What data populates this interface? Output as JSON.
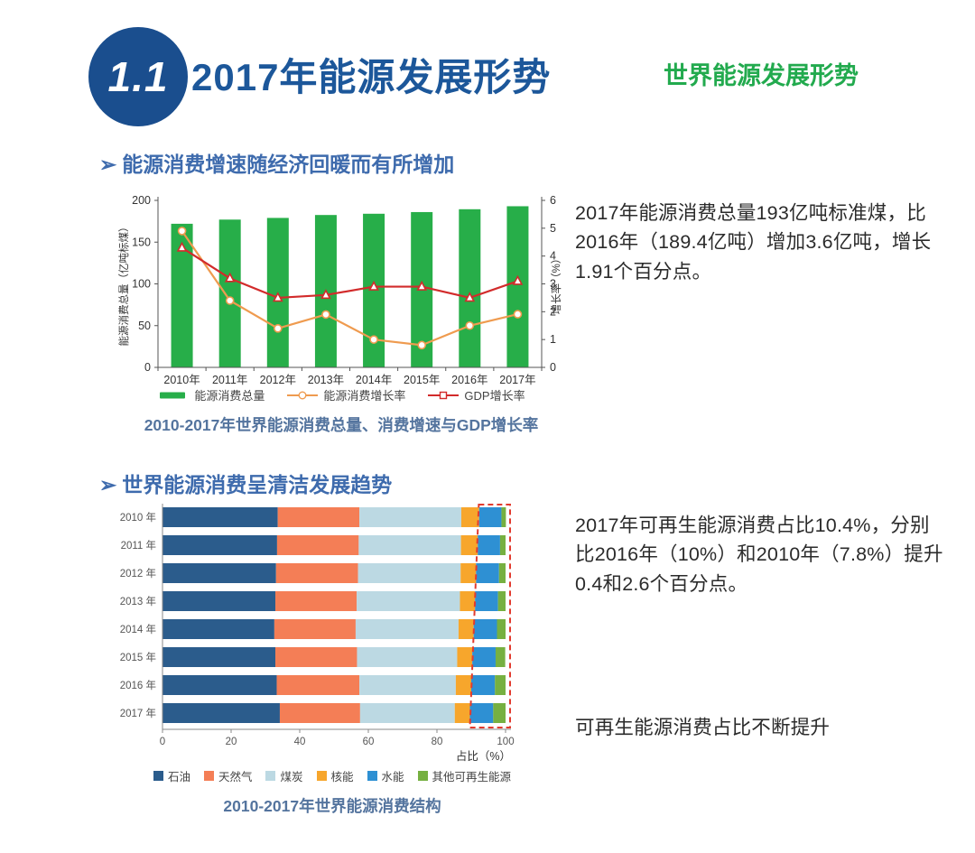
{
  "header": {
    "badge": "1.1",
    "title": "2017年能源发展形势",
    "subtitle": "世界能源发展形势"
  },
  "sections": [
    {
      "bullet": "➢",
      "heading": "能源消费增速随经济回暖而有所增加",
      "caption": "2010-2017年世界能源消费总量、消费增速与GDP增长率",
      "note": "2017年能源消费总量193亿吨标准煤，比2016年（189.4亿吨）增加3.6亿吨，增长1.91个百分点。"
    },
    {
      "bullet": "➢",
      "heading": "世界能源消费呈清洁发展趋势",
      "caption": "2010-2017年世界能源消费结构",
      "note": "2017年可再生能源消费占比10.4%，分别比2016年（10%）和2010年（7.8%）提升0.4和2.6个百分点。",
      "note2": "可再生能源消费占比不断提升"
    }
  ],
  "chart_data": [
    {
      "type": "bar",
      "subtype": "bar-line-combo",
      "title": "2010-2017年世界能源消费总量、消费增速与GDP增长率",
      "categories": [
        "2010年",
        "2011年",
        "2012年",
        "2013年",
        "2014年",
        "2015年",
        "2016年",
        "2017年"
      ],
      "series": [
        {
          "key": "total-consumption",
          "name": "能源消费总量",
          "type": "bar",
          "axis": "left",
          "color": "#27ae49",
          "values": [
            172,
            177,
            179,
            182.5,
            184,
            186,
            189.4,
            193
          ]
        },
        {
          "key": "consumption-growth",
          "name": "能源消费增长率",
          "type": "line",
          "axis": "right",
          "color": "#ef9b4f",
          "marker": "circle",
          "values": [
            4.9,
            2.4,
            1.4,
            1.9,
            1.0,
            0.8,
            1.5,
            1.91
          ]
        },
        {
          "key": "gdp-growth",
          "name": "GDP增长率",
          "type": "line",
          "axis": "right",
          "color": "#d22b2b",
          "marker": "triangle",
          "values": [
            4.3,
            3.2,
            2.5,
            2.6,
            2.9,
            2.9,
            2.5,
            3.1
          ]
        }
      ],
      "left_axis": {
        "label": "能源消费总量（亿吨标煤）",
        "min": 0,
        "max": 200,
        "step": 50
      },
      "right_axis": {
        "label": "增长率（%）",
        "min": 0,
        "max": 6,
        "step": 1
      },
      "grid": false,
      "legend_position": "bottom"
    },
    {
      "type": "bar",
      "subtype": "horizontal-stacked-percent",
      "title": "2010-2017年世界能源消费结构",
      "categories": [
        "2010 年",
        "2011 年",
        "2012 年",
        "2013 年",
        "2014 年",
        "2015 年",
        "2016 年",
        "2017 年"
      ],
      "series": [
        {
          "key": "oil",
          "name": "石油",
          "color": "#2b5c8c",
          "values": [
            33.6,
            33.4,
            33.1,
            32.9,
            32.6,
            32.9,
            33.3,
            34.2
          ]
        },
        {
          "key": "natural-gas",
          "name": "天然气",
          "color": "#f47e56",
          "values": [
            23.8,
            23.8,
            23.9,
            23.7,
            23.7,
            23.8,
            24.1,
            23.4
          ]
        },
        {
          "key": "coal",
          "name": "煤炭",
          "color": "#bcd9e3",
          "values": [
            29.7,
            29.8,
            29.9,
            30.1,
            30.0,
            29.2,
            28.1,
            27.6
          ]
        },
        {
          "key": "nuclear",
          "name": "核能",
          "color": "#f7a62c",
          "values": [
            5.2,
            4.9,
            4.5,
            4.4,
            4.4,
            4.4,
            4.5,
            4.4
          ]
        },
        {
          "key": "hydro",
          "name": "水能",
          "color": "#2e90d3",
          "values": [
            6.5,
            6.5,
            6.7,
            6.7,
            6.8,
            6.8,
            6.9,
            6.8
          ]
        },
        {
          "key": "other-renewables",
          "name": "其他可再生能源",
          "color": "#76b041",
          "values": [
            1.3,
            1.6,
            1.9,
            2.2,
            2.5,
            2.8,
            3.1,
            3.6
          ]
        }
      ],
      "x_axis": {
        "label": "占比（%）",
        "min": 0,
        "max": 100,
        "step": 20
      },
      "highlight": {
        "key": "renewables-share-outline",
        "style": "red-dashed-outline",
        "color": "#e23b2e",
        "renewable_share_percent": [
          7.8,
          8.1,
          8.6,
          8.9,
          9.3,
          9.6,
          10.0,
          10.4
        ]
      },
      "grid": false,
      "legend_position": "bottom"
    }
  ],
  "colors": {
    "badge_blue": "#1a4e8e",
    "title_blue": "#1c579a",
    "subtitle_green": "#22aa4e",
    "heading_blue": "#3e6bad",
    "caption_blue": "#54749e",
    "axis_text": "#555555"
  }
}
